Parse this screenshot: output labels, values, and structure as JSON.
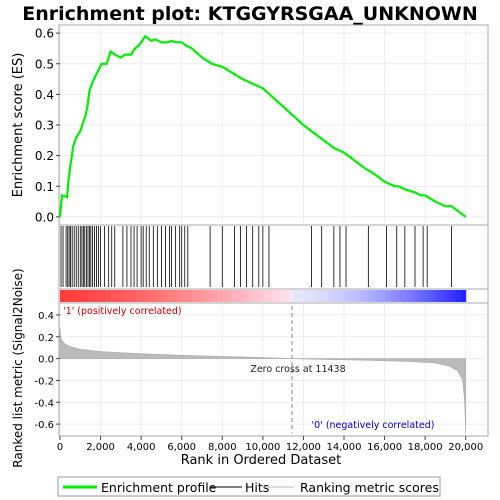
{
  "chart_data": {
    "type": "line",
    "title": "Enrichment plot: KTGGYRSGAA_UNKNOWN",
    "top_panel": {
      "ylabel": "Enrichment score (ES)",
      "ylim": [
        -0.02,
        0.62
      ],
      "yticks": [
        "0.0",
        "0.1",
        "0.2",
        "0.3",
        "0.4",
        "0.5",
        "0.6"
      ],
      "ytick_values": [
        0.0,
        0.1,
        0.2,
        0.3,
        0.4,
        0.5,
        0.6
      ],
      "series": [
        {
          "name": "Enrichment profile",
          "color": "#00ee00",
          "x": [
            0,
            100,
            350,
            420,
            500,
            650,
            800,
            1000,
            1100,
            1250,
            1350,
            1450,
            1600,
            1750,
            1900,
            2050,
            2300,
            2500,
            2700,
            3000,
            3200,
            3500,
            3700,
            3900,
            4100,
            4200,
            4500,
            4700,
            5000,
            5300,
            5500,
            5700,
            6000,
            6200,
            6500,
            7000,
            7500,
            8000,
            8500,
            9000,
            9500,
            10000,
            10500,
            11000,
            11500,
            12000,
            12500,
            13000,
            13500,
            14000,
            14500,
            15000,
            15500,
            16000,
            16500,
            16700,
            17000,
            17500,
            17800,
            18000,
            18500,
            19000,
            19300,
            19700,
            20000
          ],
          "y": [
            0.0,
            0.07,
            0.065,
            0.12,
            0.16,
            0.23,
            0.26,
            0.28,
            0.3,
            0.33,
            0.36,
            0.41,
            0.44,
            0.46,
            0.48,
            0.5,
            0.5,
            0.54,
            0.53,
            0.52,
            0.53,
            0.53,
            0.55,
            0.56,
            0.58,
            0.59,
            0.575,
            0.58,
            0.57,
            0.57,
            0.575,
            0.57,
            0.57,
            0.56,
            0.55,
            0.52,
            0.5,
            0.49,
            0.47,
            0.45,
            0.435,
            0.42,
            0.39,
            0.36,
            0.33,
            0.3,
            0.275,
            0.25,
            0.225,
            0.21,
            0.185,
            0.16,
            0.14,
            0.115,
            0.1,
            0.1,
            0.09,
            0.08,
            0.07,
            0.07,
            0.05,
            0.035,
            0.035,
            0.015,
            0.0
          ]
        }
      ],
      "hits": [
        50,
        150,
        300,
        380,
        450,
        520,
        600,
        700,
        800,
        900,
        1000,
        1080,
        1150,
        1220,
        1300,
        1380,
        1450,
        1520,
        1600,
        1700,
        1800,
        1900,
        2000,
        2200,
        2400,
        2550,
        2700,
        3100,
        3300,
        3500,
        3650,
        3800,
        4000,
        4100,
        4250,
        4400,
        4600,
        4800,
        5000,
        5200,
        5400,
        5500,
        5700,
        5900,
        6000,
        6150,
        6300,
        7400,
        8000,
        8600,
        8900,
        9200,
        9500,
        9800,
        10000,
        10300,
        12400,
        12900,
        13500,
        13800,
        14100,
        15200,
        16100,
        16600,
        17000,
        17500,
        17900,
        18100,
        19300
      ]
    },
    "bottom_panel": {
      "ylabel": "Ranked list metric (Signal2Noise)",
      "xlabel": "Rank in Ordered Dataset",
      "ylim": [
        -0.7,
        0.5
      ],
      "yticks": [
        "-0.6",
        "-0.4",
        "-0.2",
        "0.0",
        "0.2",
        "0.4"
      ],
      "ytick_values": [
        -0.6,
        -0.4,
        -0.2,
        0.0,
        0.2,
        0.4
      ],
      "xlim": [
        0,
        21000
      ],
      "xticks": [
        "0",
        "2,000",
        "4,000",
        "6,000",
        "8,000",
        "10,000",
        "12,000",
        "14,000",
        "16,000",
        "18,000",
        "20,000"
      ],
      "xtick_values": [
        0,
        2000,
        4000,
        6000,
        8000,
        10000,
        12000,
        14000,
        16000,
        18000,
        20000
      ],
      "metric_x": [
        0,
        50,
        200,
        500,
        1000,
        2000,
        4000,
        6000,
        8000,
        10000,
        11438,
        13000,
        15000,
        17000,
        18500,
        19200,
        19600,
        19850,
        19950,
        20000
      ],
      "metric_y": [
        0.28,
        0.18,
        0.14,
        0.11,
        0.085,
        0.065,
        0.045,
        0.03,
        0.02,
        0.01,
        0.0,
        -0.008,
        -0.015,
        -0.025,
        -0.04,
        -0.07,
        -0.11,
        -0.2,
        -0.4,
        -0.68
      ],
      "zero_cross": 11438,
      "zero_cross_label": "Zero cross at 11438",
      "pos_label": "'1' (positively correlated)",
      "neg_label": "'0' (negatively correlated)",
      "pos_label_color": "#cc0000",
      "neg_label_color": "#0000cc"
    },
    "legend": {
      "placement": "bottom",
      "items": [
        {
          "label": "Enrichment profile",
          "color": "#00ee00",
          "style": "thick-line"
        },
        {
          "label": "Hits",
          "color": "#000000",
          "style": "thin-line"
        },
        {
          "label": "Ranking metric scores",
          "color": "#bbbbbb",
          "style": "thin-line"
        }
      ]
    },
    "colors": {
      "profile": "#00ee00",
      "hit": "#000000",
      "metric_fill": "#bbbbbb",
      "grid": "#ececec"
    }
  }
}
